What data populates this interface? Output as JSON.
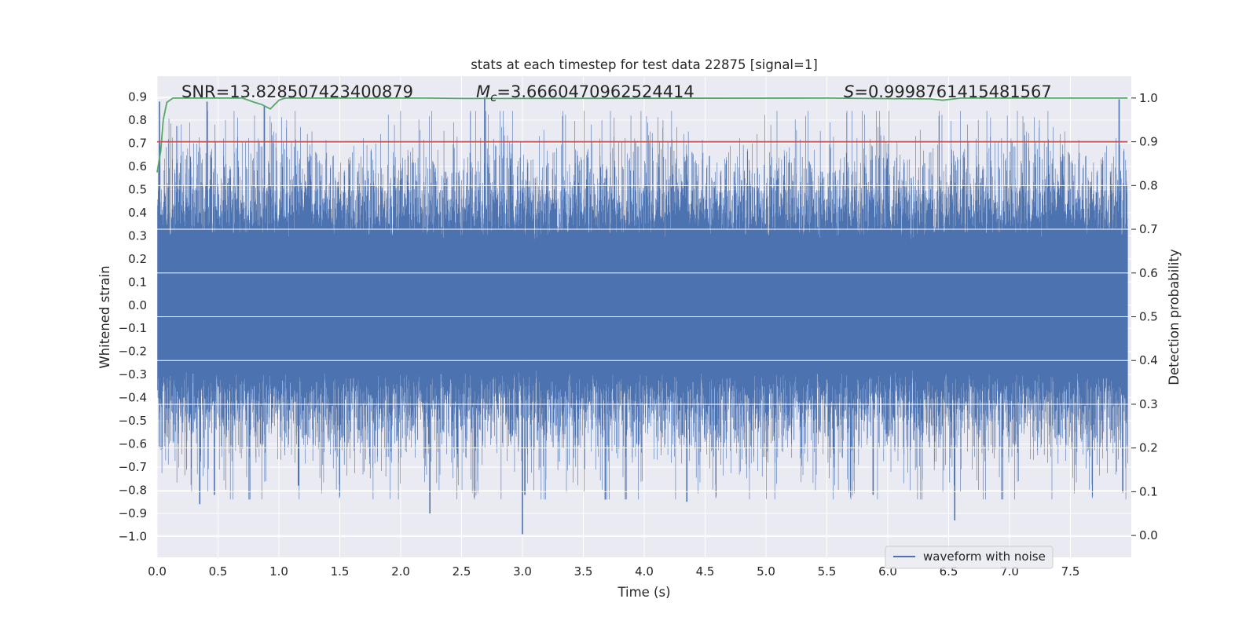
{
  "chart_data": {
    "type": "line",
    "title": "stats at each timestep for test data 22875 [signal=1]",
    "xlabel": "Time (s)",
    "ylabel": "Whitened strain",
    "ylabel_right": "Detection probability",
    "xlim": [
      0.0,
      8.0
    ],
    "ylim": [
      -1.09,
      0.99
    ],
    "ylim_right": [
      -0.05,
      1.05
    ],
    "x_ticks": [
      0.0,
      0.5,
      1.0,
      1.5,
      2.0,
      2.5,
      3.0,
      3.5,
      4.0,
      4.5,
      5.0,
      5.5,
      6.0,
      6.5,
      7.0,
      7.5
    ],
    "x_tick_labels": [
      "0.0",
      "0.5",
      "1.0",
      "1.5",
      "2.0",
      "2.5",
      "3.0",
      "3.5",
      "4.0",
      "4.5",
      "5.0",
      "5.5",
      "6.0",
      "6.5",
      "7.0",
      "7.5"
    ],
    "y_ticks": [
      0.9,
      0.8,
      0.7,
      0.6,
      0.5,
      0.4,
      0.3,
      0.2,
      0.1,
      0.0,
      -0.1,
      -0.2,
      -0.3,
      -0.4,
      -0.5,
      -0.6,
      -0.7,
      -0.8,
      -0.9,
      -1.0
    ],
    "y_tick_labels": [
      "0.9",
      "0.8",
      "0.7",
      "0.6",
      "0.5",
      "0.4",
      "0.3",
      "0.2",
      "0.1",
      "0.0",
      "−0.1",
      "−0.2",
      "−0.3",
      "−0.4",
      "−0.5",
      "−0.6",
      "−0.7",
      "−0.8",
      "−0.9",
      "−1.0"
    ],
    "y_right_ticks": [
      1.0,
      0.9,
      0.8,
      0.7,
      0.6,
      0.5,
      0.4,
      0.3,
      0.2,
      0.1,
      0.0
    ],
    "y_right_tick_labels": [
      "1.0",
      "0.9",
      "0.8",
      "0.7",
      "0.6",
      "0.5",
      "0.4",
      "0.3",
      "0.2",
      "0.1",
      "0.0"
    ],
    "annotations": {
      "snr_text": "SNR=13.828507423400879",
      "mc_prefix": "M",
      "mc_sub": "c",
      "mc_value": "=3.6660470962524414",
      "s_prefix": "S",
      "s_value": "=0.9998761415481567"
    },
    "legend": {
      "placement": "lower-right",
      "entries": [
        {
          "label": "waveform with noise",
          "color": "#4c72b0"
        }
      ]
    },
    "series": [
      {
        "name": "waveform with noise",
        "axis": "left",
        "color": "#4c72b0",
        "style": "dense-noise",
        "envelope_typical": [
          -0.45,
          0.45
        ],
        "extremes": [
          {
            "x": 0.02,
            "y": 0.88
          },
          {
            "x": 0.35,
            "y": -0.86
          },
          {
            "x": 0.41,
            "y": 0.88
          },
          {
            "x": 0.47,
            "y": -0.82
          },
          {
            "x": 0.88,
            "y": 0.86
          },
          {
            "x": 1.16,
            "y": -0.78
          },
          {
            "x": 2.24,
            "y": -0.9
          },
          {
            "x": 2.69,
            "y": 0.9
          },
          {
            "x": 3.0,
            "y": -0.99
          },
          {
            "x": 3.02,
            "y": -0.82
          },
          {
            "x": 3.68,
            "y": -0.84
          },
          {
            "x": 4.35,
            "y": -0.85
          },
          {
            "x": 5.88,
            "y": -0.82
          },
          {
            "x": 6.55,
            "y": -0.93
          },
          {
            "x": 7.9,
            "y": 0.89
          },
          {
            "x": 7.93,
            "y": -0.81
          }
        ]
      },
      {
        "name": "detection probability",
        "axis": "right",
        "color": "#55a868",
        "points": [
          [
            0.0,
            0.83
          ],
          [
            0.03,
            0.88
          ],
          [
            0.05,
            0.95
          ],
          [
            0.08,
            0.99
          ],
          [
            0.13,
            1.0
          ],
          [
            0.7,
            1.0
          ],
          [
            0.8,
            0.99
          ],
          [
            0.86,
            0.985
          ],
          [
            0.93,
            0.975
          ],
          [
            1.0,
            0.995
          ],
          [
            1.05,
            1.0
          ],
          [
            2.2,
            1.0
          ],
          [
            2.5,
            0.999
          ],
          [
            5.5,
            1.0
          ],
          [
            6.35,
            0.998
          ],
          [
            6.45,
            0.995
          ],
          [
            6.6,
            1.0
          ],
          [
            7.97,
            1.0
          ]
        ]
      },
      {
        "name": "threshold",
        "axis": "right",
        "color": "#c44e52",
        "points": [
          [
            0.0,
            0.9
          ],
          [
            7.97,
            0.9
          ]
        ]
      }
    ]
  }
}
